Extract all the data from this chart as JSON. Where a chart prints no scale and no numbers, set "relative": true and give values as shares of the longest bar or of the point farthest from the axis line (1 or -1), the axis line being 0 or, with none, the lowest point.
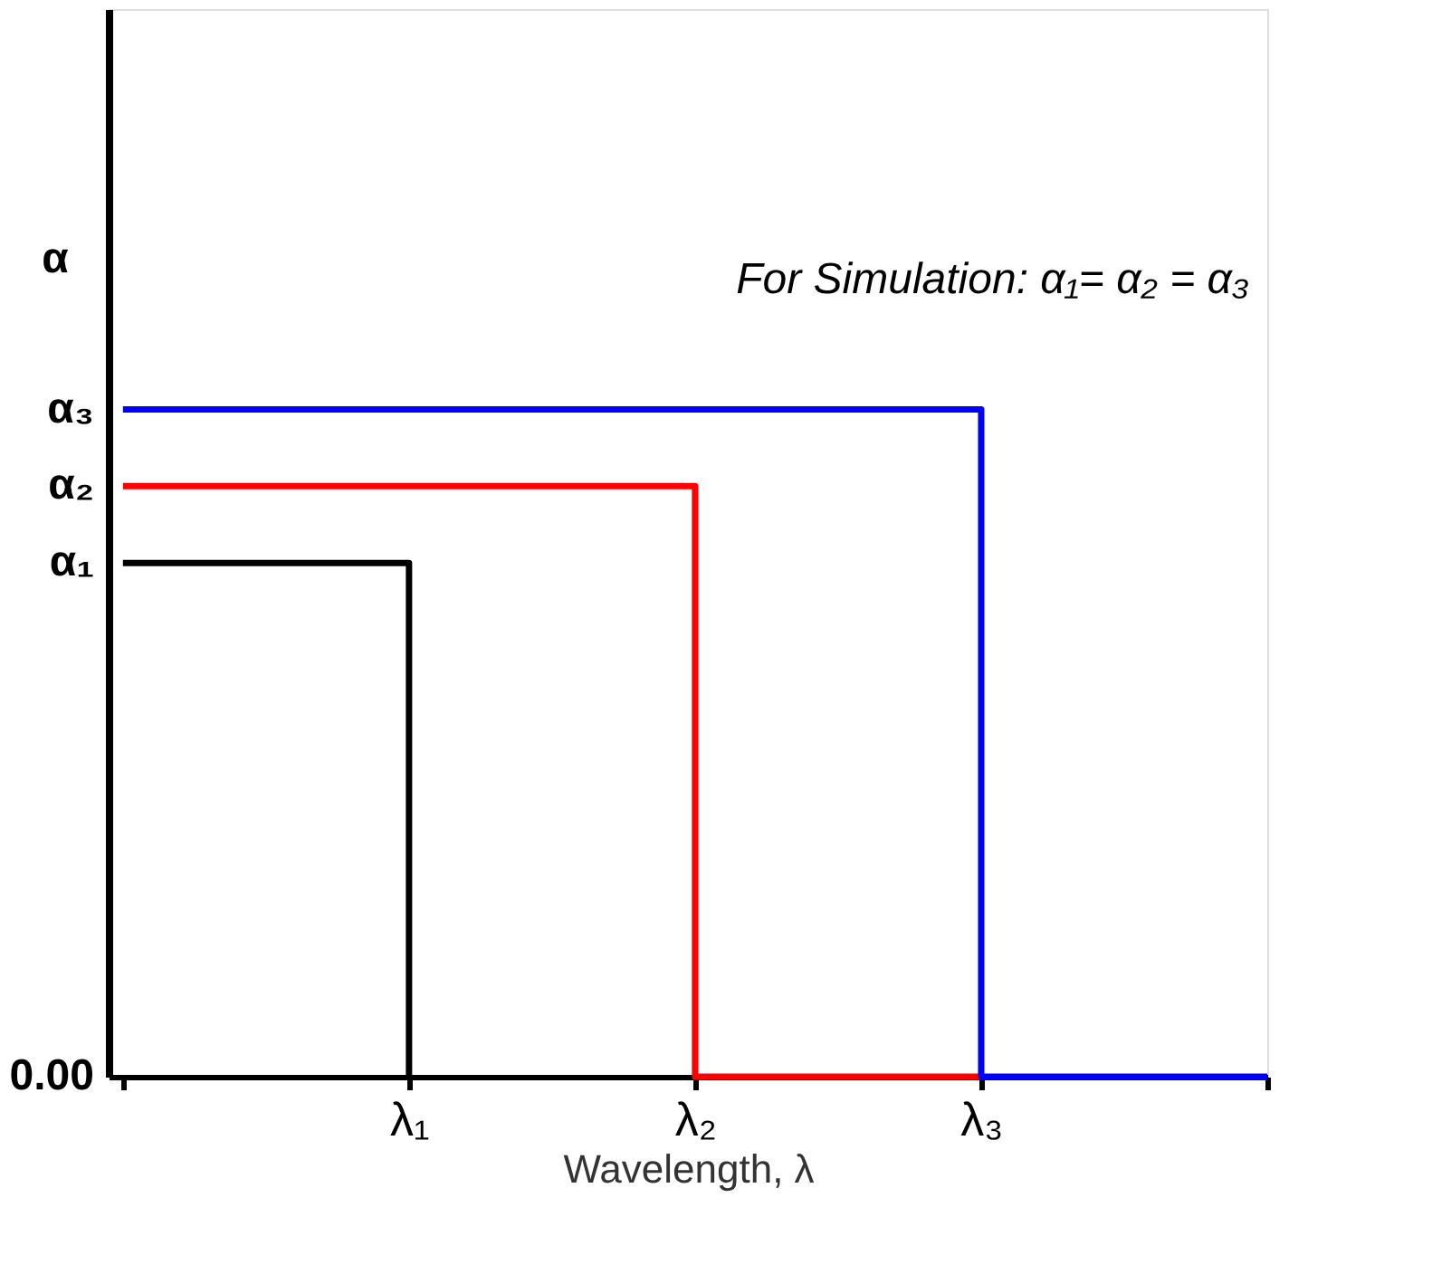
{
  "chart_data": {
    "type": "step",
    "relative": true,
    "xlabel": "Wavelength, λ",
    "ylabel": "α",
    "annotations": [
      "For Simulation: α₁= α₂ = α₃",
      "α₃",
      "α₂",
      "α₁",
      "0.00"
    ],
    "categories": [
      null,
      "λ₁",
      "λ₂",
      "λ₃",
      null
    ],
    "series": [
      {
        "color": "#000000",
        "values": [
          0.77,
          0,
          null,
          null,
          null
        ]
      },
      {
        "color": "#ff0000",
        "values": [
          0.885,
          0.885,
          0,
          0,
          null
        ]
      },
      {
        "color": "#0000ff",
        "values": [
          1,
          1,
          1,
          0,
          0
        ]
      }
    ],
    "grid": false,
    "legend": false,
    "marker": "none",
    "line_style": "solid"
  }
}
